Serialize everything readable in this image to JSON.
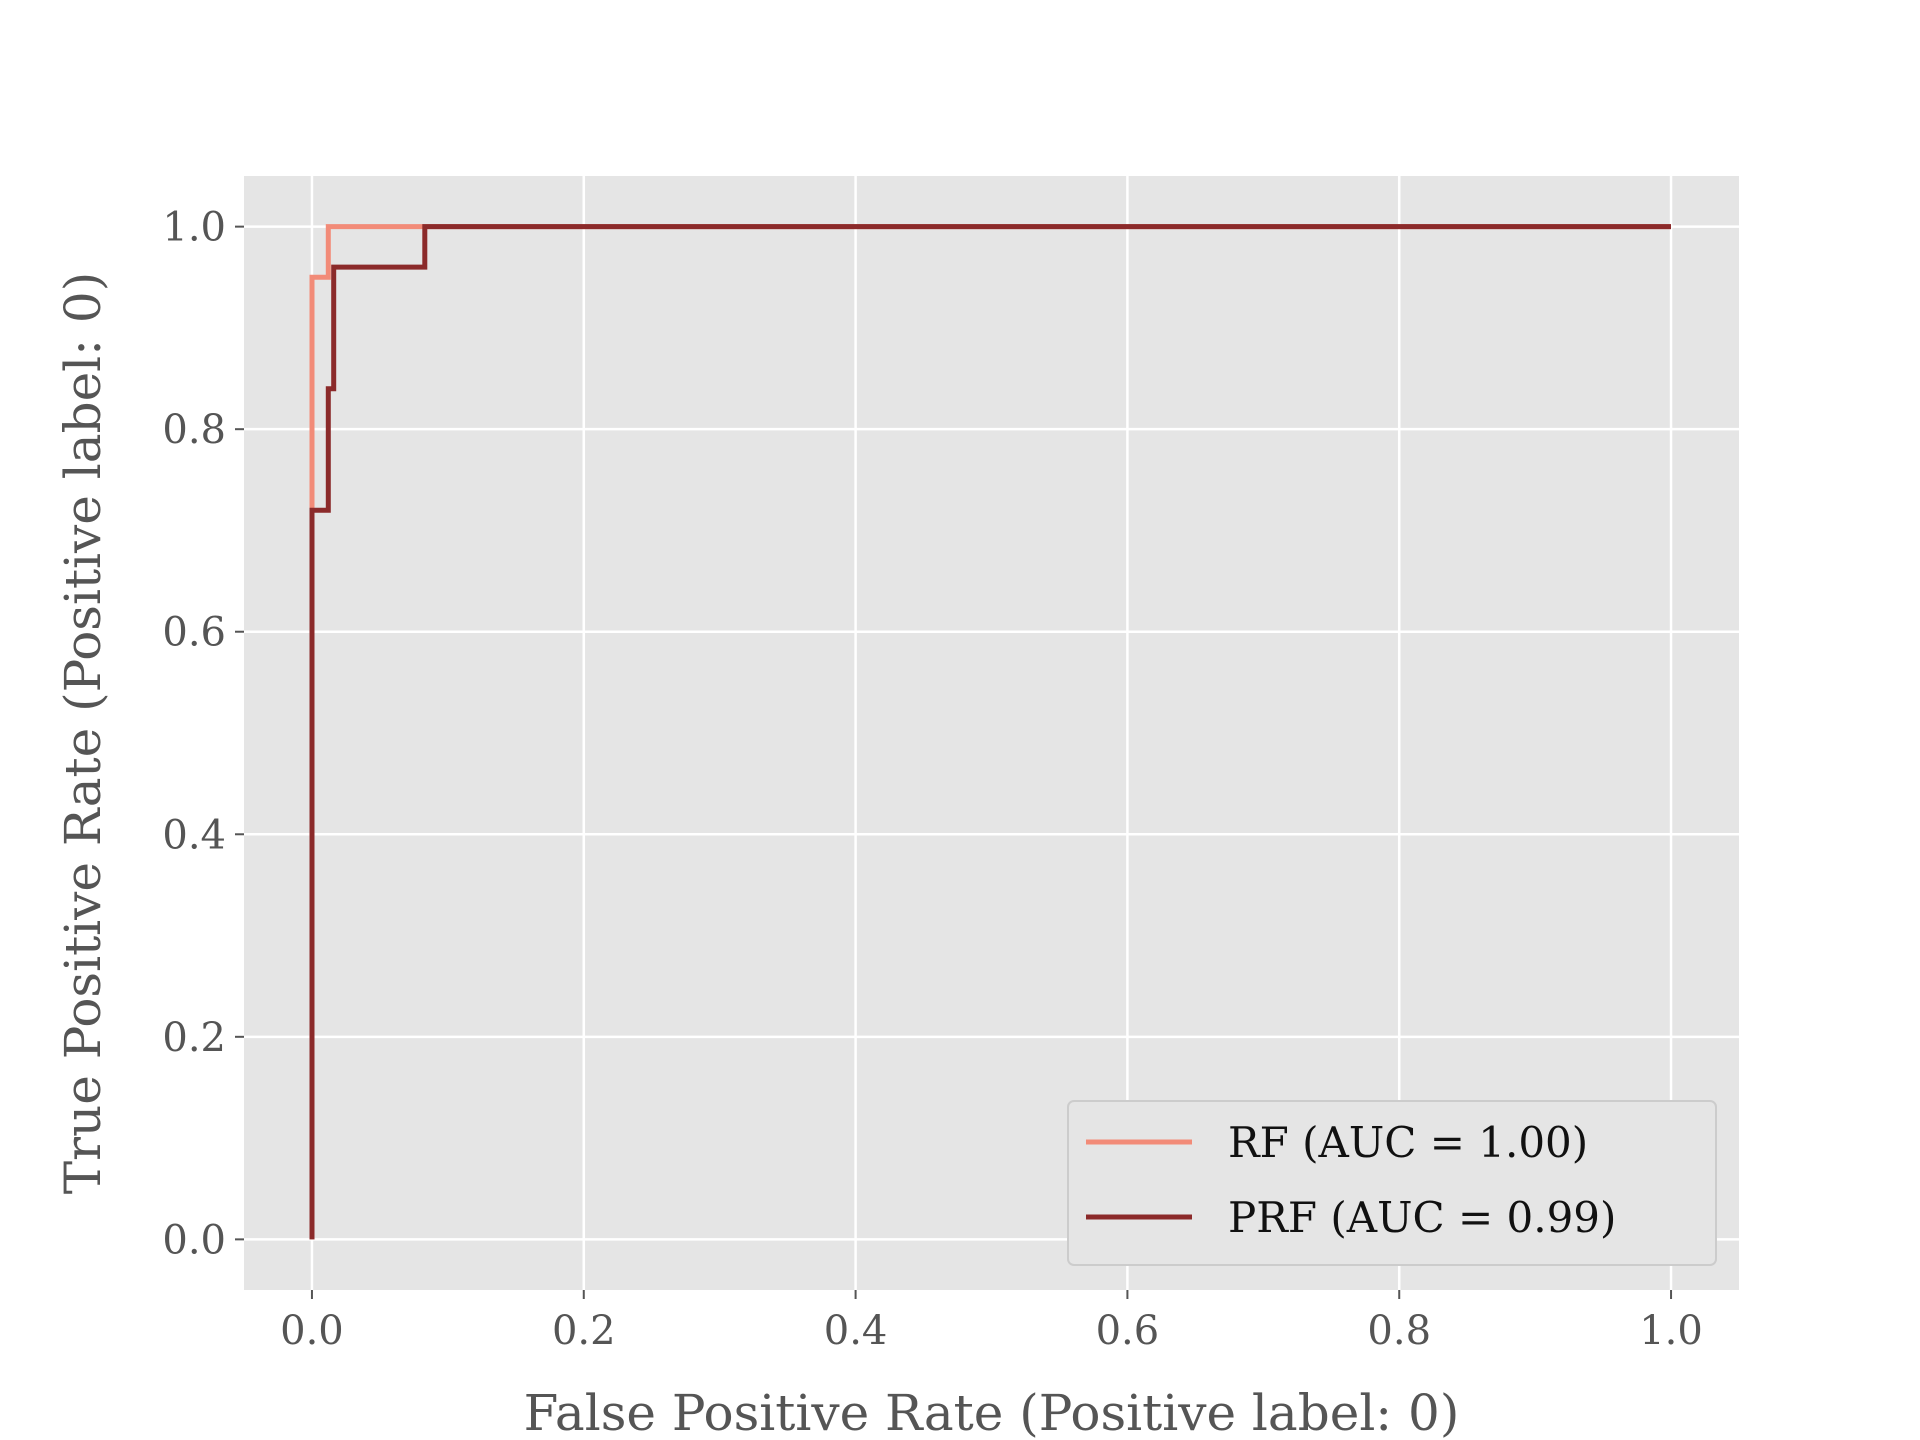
{
  "chart_data": {
    "type": "line",
    "title": "",
    "xlabel": "False Positive Rate (Positive label: 0)",
    "ylabel": "True Positive Rate (Positive label: 0)",
    "xlim": [
      -0.05,
      1.05
    ],
    "ylim": [
      -0.05,
      1.05
    ],
    "xticks": [
      "0.0",
      "0.2",
      "0.4",
      "0.6",
      "0.8",
      "1.0"
    ],
    "yticks": [
      "0.0",
      "0.2",
      "0.4",
      "0.6",
      "0.8",
      "1.0"
    ],
    "grid": true,
    "legend_position": "lower-right",
    "series": [
      {
        "name": "RF (AUC = 1.00)",
        "color": "#f28b78",
        "x": [
          0.0,
          0.0,
          0.0,
          0.012,
          0.012,
          1.0
        ],
        "y": [
          0.0,
          0.72,
          0.95,
          0.95,
          1.0,
          1.0
        ]
      },
      {
        "name": "PRF (AUC = 0.99)",
        "color": "#8b2a2a",
        "x": [
          0.0,
          0.0,
          0.012,
          0.012,
          0.016,
          0.016,
          0.083,
          0.083,
          1.0
        ],
        "y": [
          0.0,
          0.72,
          0.72,
          0.84,
          0.84,
          0.96,
          0.96,
          1.0,
          1.0
        ]
      }
    ]
  }
}
